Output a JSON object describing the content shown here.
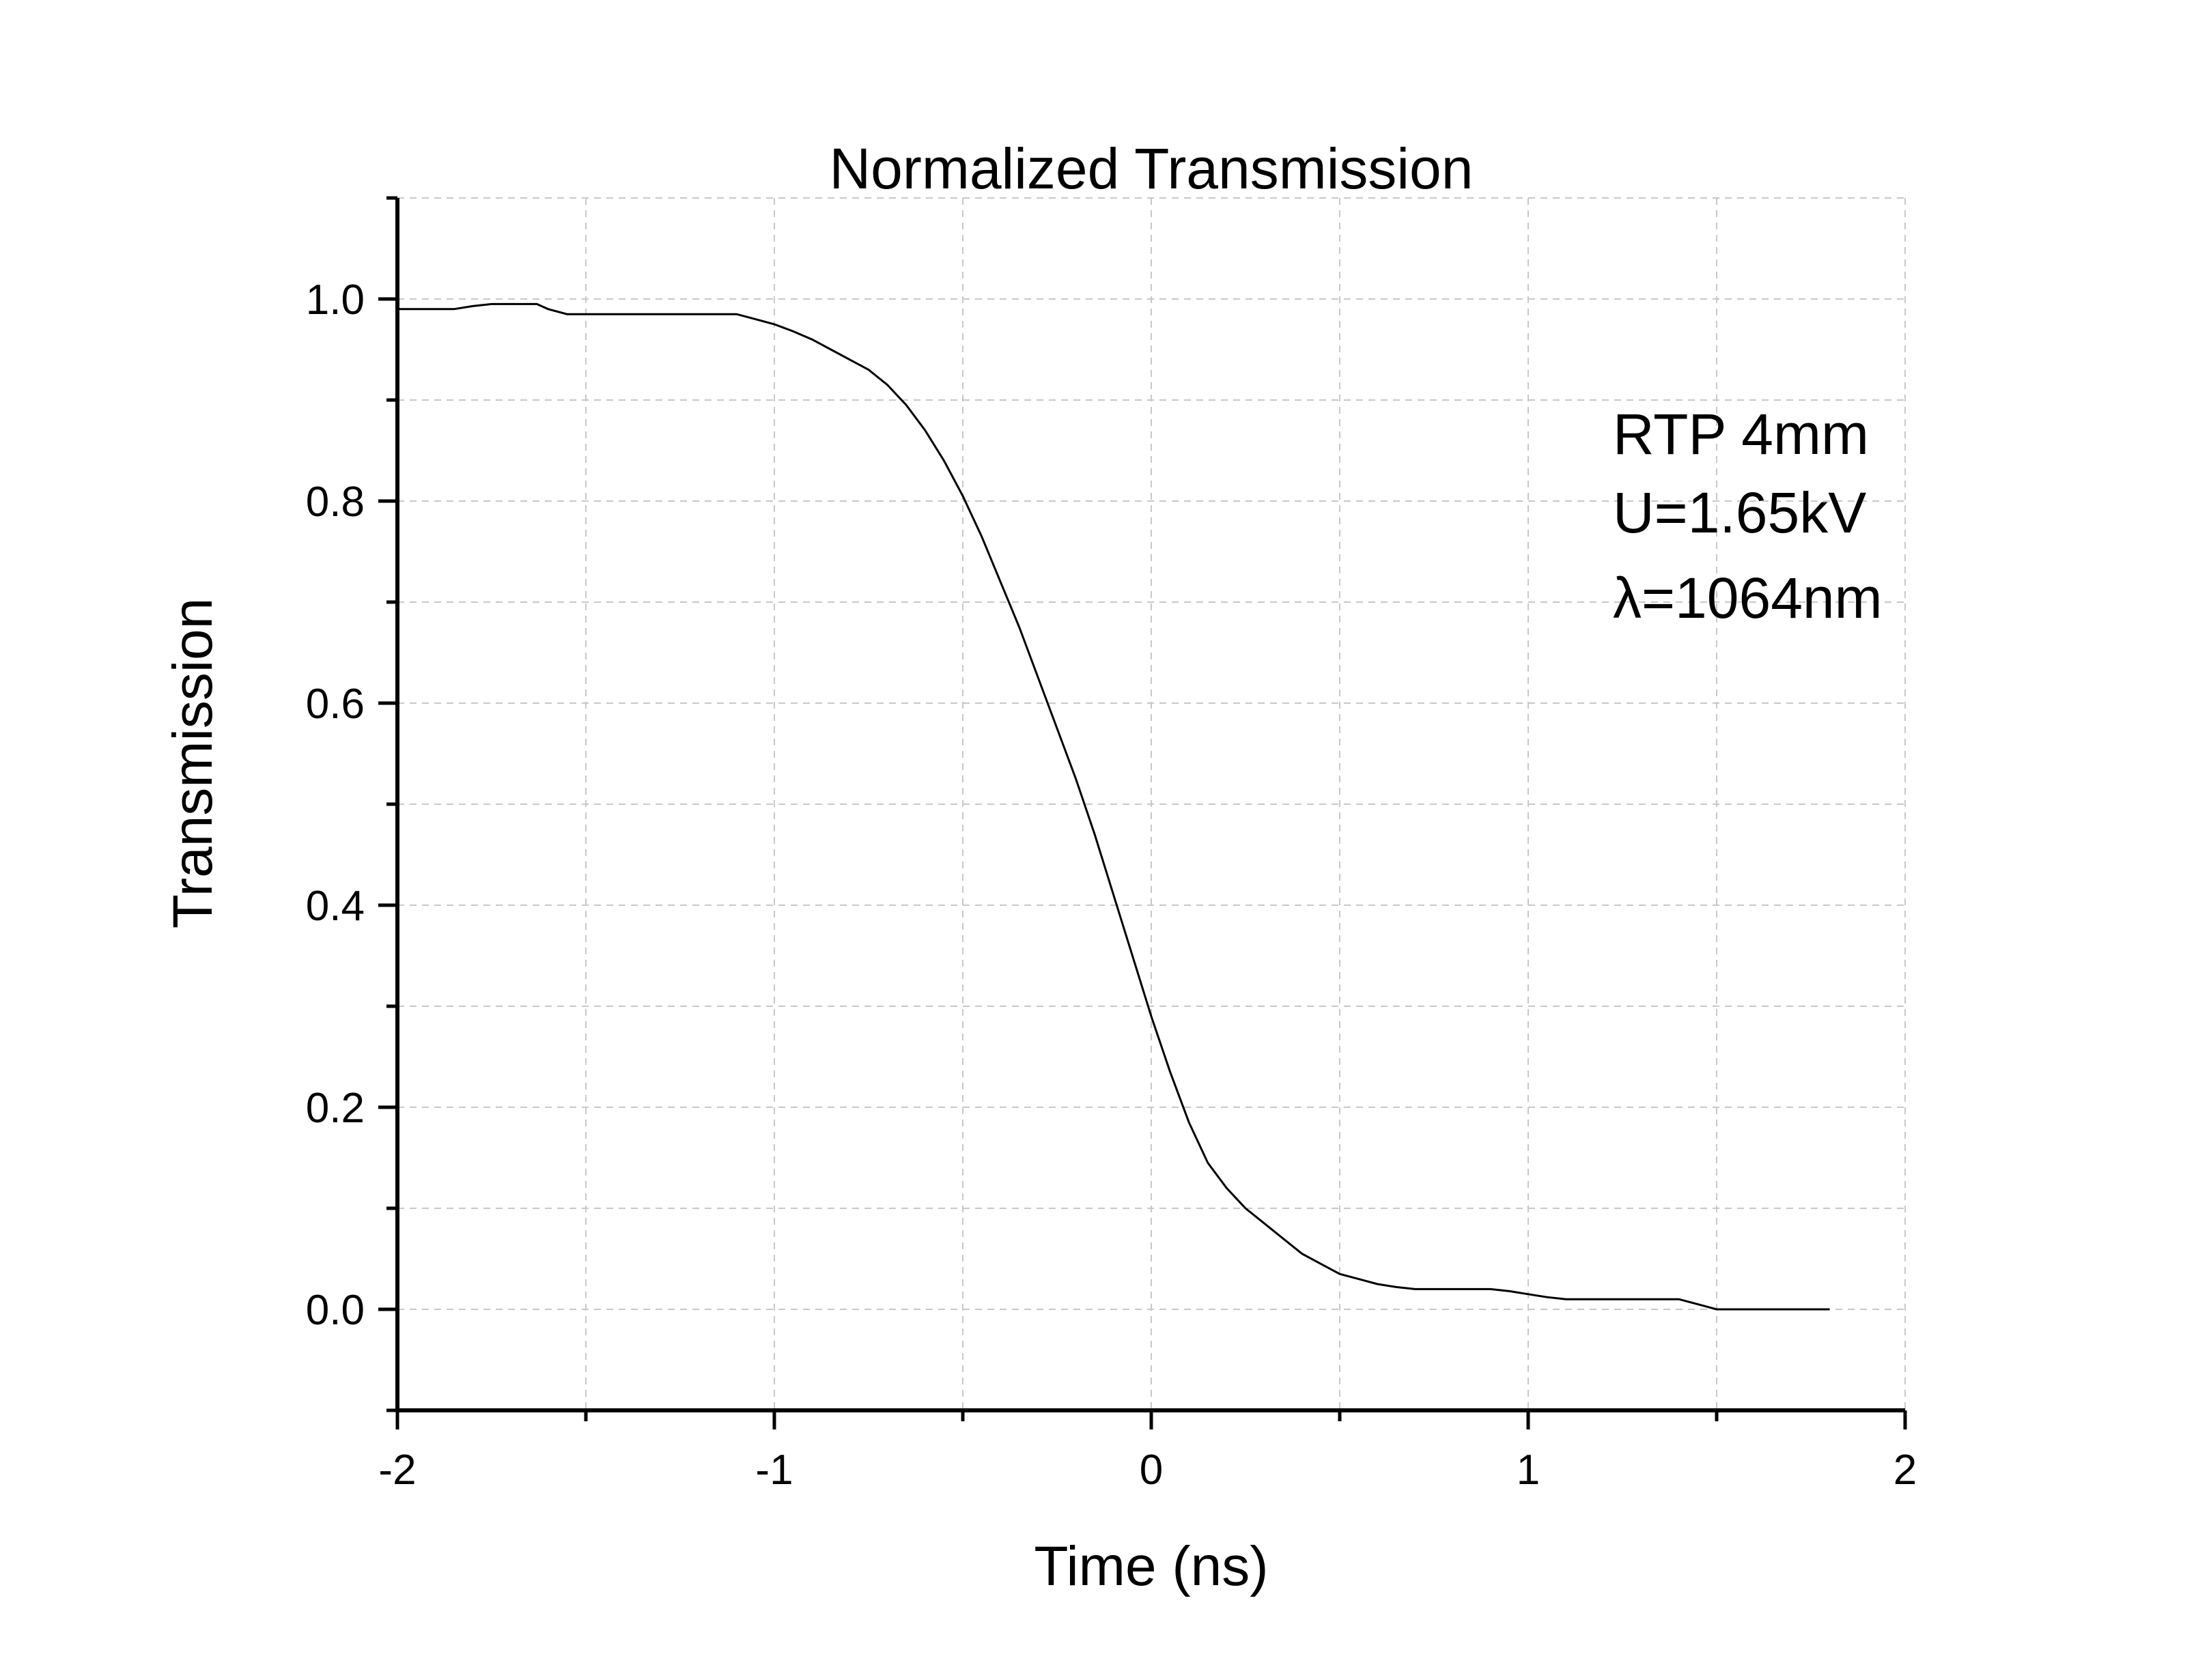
{
  "chart_data": {
    "type": "line",
    "title": "Normalized Transmission",
    "xlabel": "Time (ns)",
    "ylabel": "Transmission",
    "xlim": [
      -2,
      2
    ],
    "ylim": [
      -0.1,
      1.1
    ],
    "x_ticks": [
      -2,
      -1,
      0,
      1,
      2
    ],
    "x_tick_labels": [
      "-2",
      "-1",
      "0",
      "1",
      "2"
    ],
    "y_ticks": [
      0.0,
      0.2,
      0.4,
      0.6,
      0.8,
      1.0
    ],
    "y_tick_labels": [
      "0.0",
      "0.2",
      "0.4",
      "0.6",
      "0.8",
      "1.0"
    ],
    "grid": true,
    "annotations": [
      "RTP 4mm",
      "U=1.65kV",
      "λ=1064nm"
    ],
    "series": [
      {
        "color": "#000000",
        "x": [
          -2.0,
          -1.85,
          -1.8,
          -1.75,
          -1.63,
          -1.6,
          -1.55,
          -1.45,
          -1.3,
          -1.1,
          -1.05,
          -1.0,
          -0.95,
          -0.9,
          -0.85,
          -0.8,
          -0.75,
          -0.7,
          -0.65,
          -0.6,
          -0.55,
          -0.5,
          -0.45,
          -0.4,
          -0.35,
          -0.3,
          -0.25,
          -0.2,
          -0.15,
          -0.1,
          -0.05,
          0.0,
          0.05,
          0.1,
          0.15,
          0.2,
          0.25,
          0.3,
          0.35,
          0.4,
          0.45,
          0.5,
          0.55,
          0.6,
          0.65,
          0.7,
          0.75,
          0.8,
          0.85,
          0.9,
          0.95,
          1.0,
          1.05,
          1.1,
          1.2,
          1.3,
          1.4,
          1.45,
          1.5,
          1.6,
          1.7,
          1.75,
          1.8
        ],
        "y": [
          0.99,
          0.99,
          0.993,
          0.995,
          0.995,
          0.99,
          0.985,
          0.985,
          0.985,
          0.985,
          0.98,
          0.975,
          0.968,
          0.96,
          0.95,
          0.94,
          0.93,
          0.915,
          0.895,
          0.87,
          0.84,
          0.805,
          0.765,
          0.72,
          0.675,
          0.625,
          0.575,
          0.525,
          0.47,
          0.41,
          0.35,
          0.29,
          0.235,
          0.185,
          0.145,
          0.12,
          0.1,
          0.085,
          0.07,
          0.055,
          0.045,
          0.035,
          0.03,
          0.025,
          0.022,
          0.02,
          0.02,
          0.02,
          0.02,
          0.02,
          0.018,
          0.015,
          0.012,
          0.01,
          0.01,
          0.01,
          0.01,
          0.005,
          0.0,
          0.0,
          0.0,
          0.0,
          0.0
        ]
      }
    ]
  }
}
